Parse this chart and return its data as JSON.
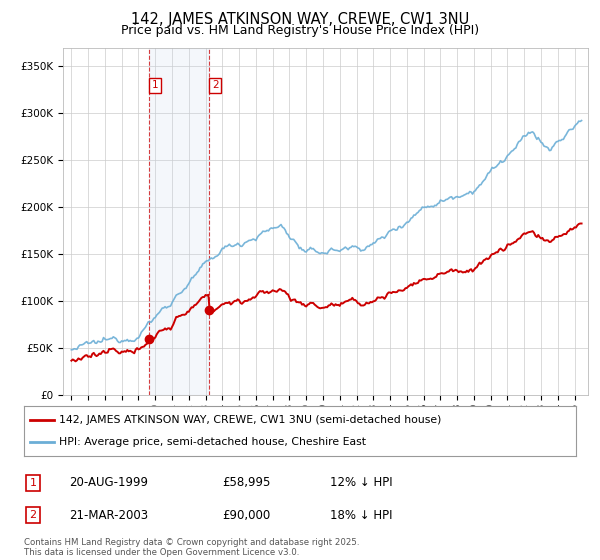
{
  "title": "142, JAMES ATKINSON WAY, CREWE, CW1 3NU",
  "subtitle": "Price paid vs. HM Land Registry's House Price Index (HPI)",
  "ylabel_values": [
    "£0",
    "£50K",
    "£100K",
    "£150K",
    "£200K",
    "£250K",
    "£300K",
    "£350K"
  ],
  "yticks": [
    0,
    50000,
    100000,
    150000,
    200000,
    250000,
    300000,
    350000
  ],
  "ylim": [
    0,
    370000
  ],
  "line1_color": "#cc0000",
  "line2_color": "#6baed6",
  "purchase1_date_x": 1999.64,
  "purchase1_y": 58995,
  "purchase2_date_x": 2003.22,
  "purchase2_y": 90000,
  "vline1_x": 1999.64,
  "vline2_x": 2003.22,
  "shade_xmin": 1999.64,
  "shade_xmax": 2003.22,
  "legend1_label": "142, JAMES ATKINSON WAY, CREWE, CW1 3NU (semi-detached house)",
  "legend2_label": "HPI: Average price, semi-detached house, Cheshire East",
  "table_row1": [
    "1",
    "20-AUG-1999",
    "£58,995",
    "12% ↓ HPI"
  ],
  "table_row2": [
    "2",
    "21-MAR-2003",
    "£90,000",
    "18% ↓ HPI"
  ],
  "footnote": "Contains HM Land Registry data © Crown copyright and database right 2025.\nThis data is licensed under the Open Government Licence v3.0.",
  "background_color": "#ffffff",
  "grid_color": "#cccccc",
  "title_fontsize": 10.5,
  "subtitle_fontsize": 9,
  "axis_fontsize": 7.5,
  "xlim_min": 1994.5,
  "xlim_max": 2025.8
}
